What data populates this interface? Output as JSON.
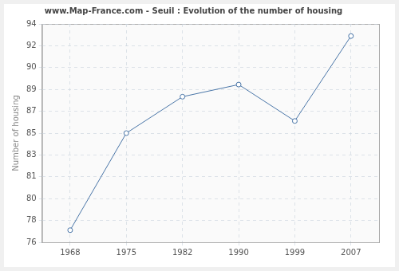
{
  "chart_data": {
    "type": "line",
    "title": "www.Map-France.com - Seuil : Evolution of the number of housing",
    "y_label": "Number of housing",
    "categories": [
      "1968",
      "1975",
      "1982",
      "1990",
      "1999",
      "2007"
    ],
    "values": [
      77,
      85,
      88,
      89,
      86,
      93
    ],
    "color": "#4a76a8",
    "marker": "circle",
    "ylim": [
      76,
      94
    ],
    "yticks": [
      76,
      {
        "value": 77.8,
        "label": "78"
      },
      {
        "value": 79.6,
        "label": "80"
      },
      {
        "value": 81.4,
        "label": "81"
      },
      {
        "value": 83.2,
        "label": "83"
      },
      85,
      {
        "value": 86.8,
        "label": "87"
      },
      {
        "value": 88.6,
        "label": "89"
      },
      {
        "value": 90.4,
        "label": "90"
      },
      {
        "value": 92.2,
        "label": "92"
      },
      94
    ],
    "grid": true
  }
}
